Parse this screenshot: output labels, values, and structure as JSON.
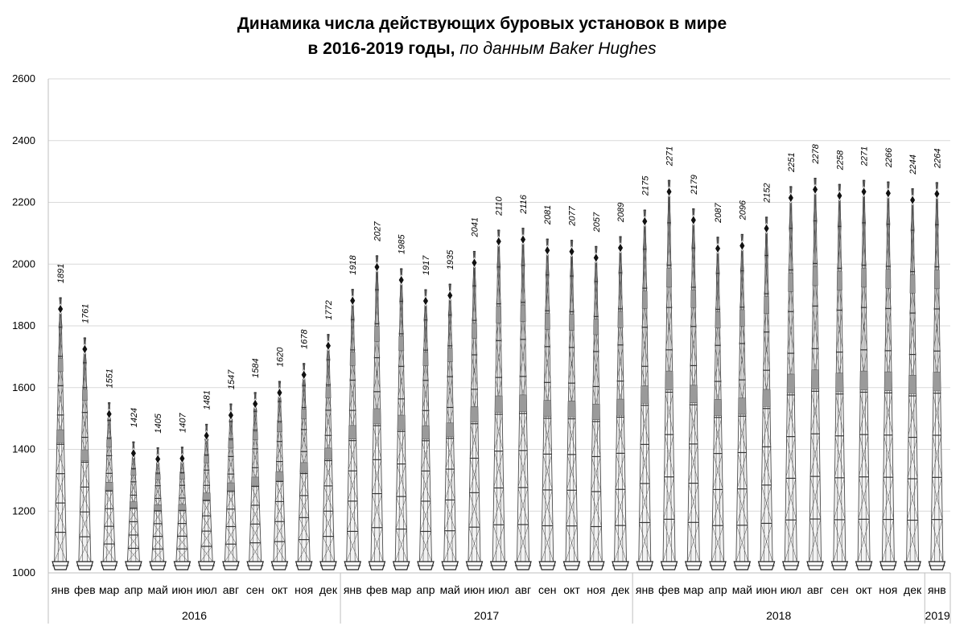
{
  "chart_data": {
    "type": "bar",
    "title": "Динамика числа действующих буровых установок в мире",
    "subtitle_bold": "в 2016-2019 годы,",
    "subtitle_italic": "по данным Baker Hughes",
    "ylim": [
      1000,
      2600
    ],
    "yticks": [
      1000,
      1200,
      1400,
      1600,
      1800,
      2000,
      2200,
      2400,
      2600
    ],
    "grid": true,
    "legend": "none",
    "categories": [
      "янв",
      "фев",
      "мар",
      "апр",
      "май",
      "июн",
      "июл",
      "авг",
      "сен",
      "окт",
      "ноя",
      "дек",
      "янв",
      "фев",
      "мар",
      "апр",
      "май",
      "июн",
      "июл",
      "авг",
      "сен",
      "окт",
      "ноя",
      "дек",
      "янв",
      "фев",
      "мар",
      "апр",
      "май",
      "июн",
      "июл",
      "авг",
      "сен",
      "окт",
      "ноя",
      "дек",
      "янв"
    ],
    "values": [
      1891,
      1761,
      1551,
      1424,
      1405,
      1407,
      1481,
      1547,
      1584,
      1620,
      1678,
      1772,
      1918,
      2027,
      1985,
      1917,
      1935,
      2041,
      2110,
      2116,
      2081,
      2077,
      2057,
      2089,
      2175,
      2271,
      2179,
      2087,
      2096,
      2152,
      2251,
      2278,
      2258,
      2271,
      2266,
      2244,
      2264
    ],
    "groups": [
      {
        "label": "2016",
        "count": 12
      },
      {
        "label": "2017",
        "count": 12
      },
      {
        "label": "2018",
        "count": 12
      },
      {
        "label": "2019",
        "count": 1
      }
    ],
    "colors": {
      "rig": "#4d4d4d",
      "rig_fill": "#9a9a9a",
      "grid": "#d9d9d9",
      "axis": "#bfbfbf"
    }
  }
}
